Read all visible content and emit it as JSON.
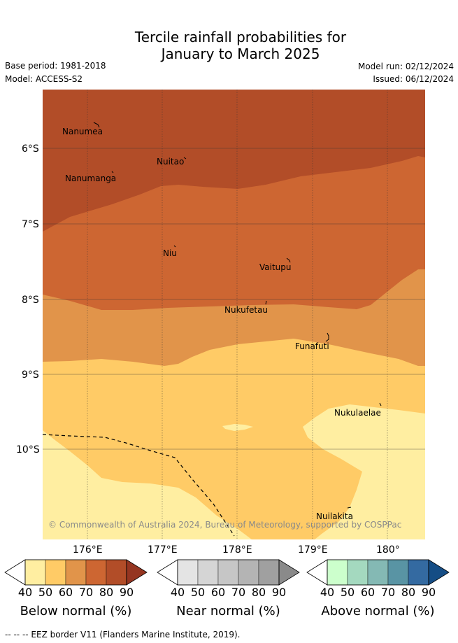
{
  "title": {
    "line1": "Tercile rainfall probabilities for",
    "line2": "January to March 2025"
  },
  "meta": {
    "base_period": "Base period: 1981-2018",
    "model": "Model: ACCESS-S2",
    "model_run": "Model run: 02/12/2024",
    "issued": "Issued: 06/12/2024"
  },
  "axes": {
    "lat_labels": [
      "6°S",
      "7°S",
      "8°S",
      "9°S",
      "10°S"
    ],
    "lon_labels": [
      "176°E",
      "177°E",
      "178°E",
      "179°E",
      "180°"
    ]
  },
  "places": [
    "Nanumea",
    "Nuitao",
    "Nanumanga",
    "Niu",
    "Vaitupu",
    "Nukufetau",
    "Funafuti",
    "Nukulaelae",
    "Nuilakita"
  ],
  "credit": "© Commonwealth of Australia 2024, Bureau of Meteorology, supported by COSPPac",
  "colorbars": [
    {
      "label": "Below normal (%)",
      "ticks": [
        "40",
        "50",
        "60",
        "70",
        "80",
        "90"
      ],
      "colors": [
        "#ffffff",
        "#ffeea1",
        "#ffcb66",
        "#e1944a",
        "#cd6632",
        "#b24d28",
        "#953521"
      ]
    },
    {
      "label": "Near normal (%)",
      "ticks": [
        "40",
        "50",
        "60",
        "70",
        "80",
        "90"
      ],
      "colors": [
        "#ffffff",
        "#e4e4e4",
        "#d5d5d5",
        "#c6c6c6",
        "#b4b4b4",
        "#a0a0a0",
        "#8a8a8a"
      ]
    },
    {
      "label": "Above normal (%)",
      "ticks": [
        "40",
        "50",
        "60",
        "70",
        "80",
        "90"
      ],
      "colors": [
        "#ffffff",
        "#ccffcc",
        "#a4d9bf",
        "#84b9b4",
        "#5994a4",
        "#346aa1",
        "#154d85"
      ]
    }
  ],
  "footer": "-- -- -- EEZ border V11 (Flanders Marine Institute, 2019).",
  "colors": {
    "band_90": "#b24d28",
    "band_80": "#cd6632",
    "band_70": "#e1944a",
    "band_60": "#ffcb66",
    "band_50": "#ffeea1"
  }
}
